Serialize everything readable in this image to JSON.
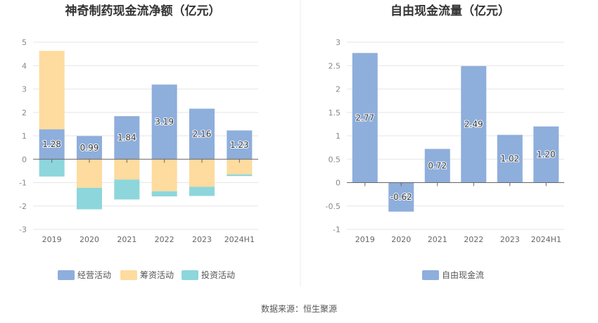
{
  "source_note": "数据来源：恒生聚源",
  "chart_data": [
    {
      "type": "bar",
      "stacked": true,
      "title": "神奇制药现金流净额（亿元）",
      "categories": [
        "2019",
        "2020",
        "2021",
        "2022",
        "2023",
        "2024H1"
      ],
      "ylim": [
        -3,
        5
      ],
      "yticks": [
        -3,
        -2,
        -1,
        0,
        1,
        2,
        3,
        4,
        5
      ],
      "grid": true,
      "legend_position": "bottom",
      "series": [
        {
          "name": "经营活动",
          "color": "#8eaedc",
          "values": [
            1.28,
            0.99,
            1.84,
            3.19,
            2.16,
            1.23
          ],
          "labels": [
            "1.28",
            "0.99",
            "1.84",
            "3.19",
            "2.16",
            "1.23"
          ]
        },
        {
          "name": "筹资活动",
          "color": "#fedb9e",
          "values": [
            3.35,
            -1.22,
            -0.87,
            -1.37,
            -1.18,
            -0.65
          ]
        },
        {
          "name": "投资活动",
          "color": "#8dd6dc",
          "values": [
            -0.74,
            -0.92,
            -0.85,
            -0.22,
            -0.39,
            -0.07
          ]
        }
      ]
    },
    {
      "type": "bar",
      "title": "自由现金流量（亿元）",
      "categories": [
        "2019",
        "2020",
        "2021",
        "2022",
        "2023",
        "2024H1"
      ],
      "ylim": [
        -1,
        3
      ],
      "yticks": [
        -1,
        -0.5,
        0,
        0.5,
        1,
        1.5,
        2,
        2.5,
        3
      ],
      "grid": true,
      "legend_position": "bottom",
      "series": [
        {
          "name": "自由现金流",
          "color": "#8eaedc",
          "values": [
            2.77,
            -0.62,
            0.72,
            2.49,
            1.02,
            1.2
          ],
          "labels": [
            "2.77",
            "-0.62",
            "0.72",
            "2.49",
            "1.02",
            "1.20"
          ]
        }
      ]
    }
  ]
}
